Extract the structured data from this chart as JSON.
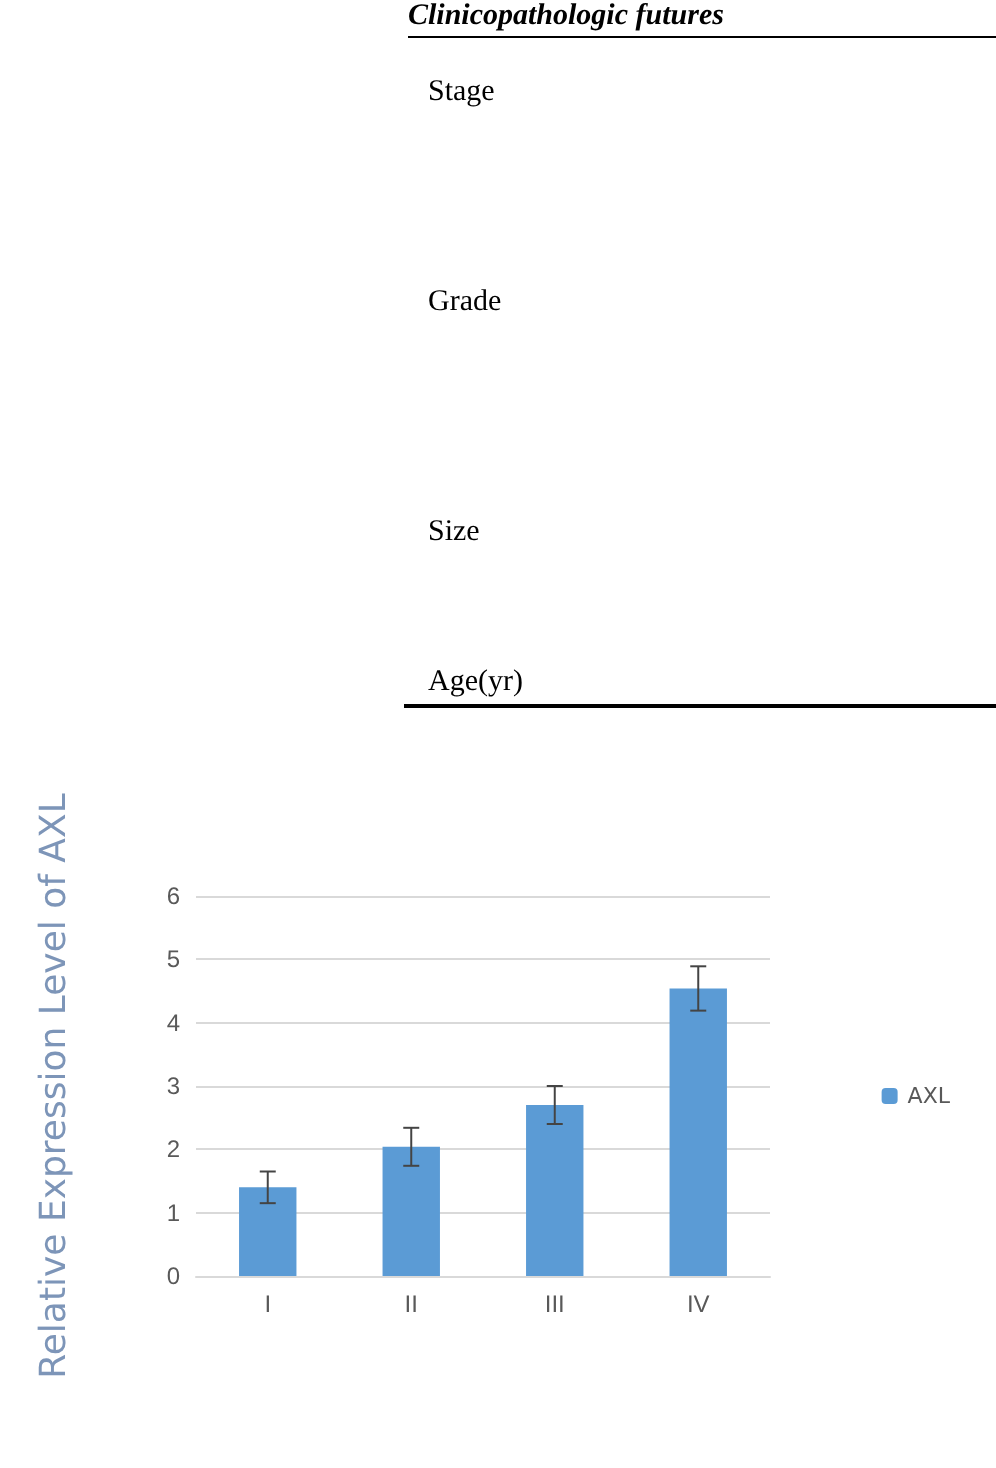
{
  "chart_data": {
    "type": "bar",
    "ylabel": "Relative Expression Level of AXL",
    "annotations": [
      "Clinicopathologic futures",
      "Stage",
      "Grade",
      "Size",
      "Age(yr)"
    ],
    "categories": [
      "I",
      "II",
      "III",
      "IV"
    ],
    "series": [
      {
        "name": "AXL",
        "color": "#5b9bd5",
        "values": [
          1.4,
          2.04,
          2.7,
          4.54
        ],
        "errors": [
          0.25,
          0.3,
          0.3,
          0.35
        ]
      }
    ],
    "ylim": [
      0,
      6
    ],
    "yticks": [
      0,
      1,
      2,
      3,
      4,
      5,
      6
    ],
    "grid": "y",
    "legend": "right"
  }
}
